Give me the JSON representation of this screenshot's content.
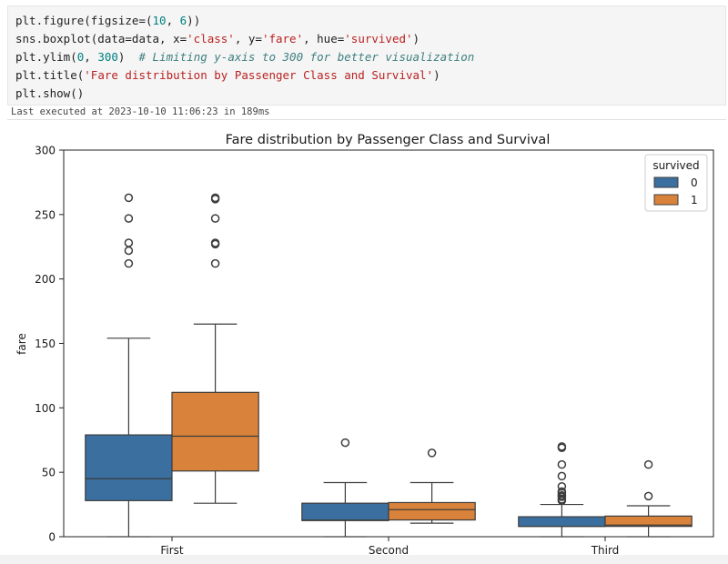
{
  "code": {
    "lines": [
      [
        {
          "t": "plt.figure(figsize=(",
          "c": "kw"
        },
        {
          "t": "10",
          "c": "num"
        },
        {
          "t": ", ",
          "c": "kw"
        },
        {
          "t": "6",
          "c": "num"
        },
        {
          "t": "))",
          "c": "kw"
        }
      ],
      [
        {
          "t": "sns.boxplot(data=data, x=",
          "c": "kw"
        },
        {
          "t": "'class'",
          "c": "str"
        },
        {
          "t": ", y=",
          "c": "kw"
        },
        {
          "t": "'fare'",
          "c": "str"
        },
        {
          "t": ", hue=",
          "c": "kw"
        },
        {
          "t": "'survived'",
          "c": "str"
        },
        {
          "t": ")",
          "c": "kw"
        }
      ],
      [
        {
          "t": "plt.ylim(",
          "c": "kw"
        },
        {
          "t": "0",
          "c": "num"
        },
        {
          "t": ", ",
          "c": "kw"
        },
        {
          "t": "300",
          "c": "num"
        },
        {
          "t": ")  ",
          "c": "kw"
        },
        {
          "t": "# Limiting y-axis to 300 for better visualization",
          "c": "cmt"
        }
      ],
      [
        {
          "t": "plt.title(",
          "c": "kw"
        },
        {
          "t": "'Fare distribution by Passenger Class and Survival'",
          "c": "str"
        },
        {
          "t": ")",
          "c": "kw"
        }
      ],
      [
        {
          "t": "plt.show()",
          "c": "kw"
        }
      ]
    ]
  },
  "exec_status": "Last executed at 2023-10-10 11:06:23 in 189ms",
  "colors": {
    "survived_0": "#3a6f9f",
    "survived_1": "#d9823b",
    "edge": "#3d3d3d"
  },
  "chart_data": {
    "type": "box",
    "title": "Fare distribution by Passenger Class and Survival",
    "xlabel": "",
    "ylabel": "fare",
    "ylim": [
      0,
      300
    ],
    "yticks": [
      0,
      50,
      100,
      150,
      200,
      250,
      300
    ],
    "categories": [
      "First",
      "Second",
      "Third"
    ],
    "legend": {
      "title": "survived",
      "placement": "top-right",
      "entries": [
        "0",
        "1"
      ]
    },
    "series": [
      {
        "name": "0",
        "boxes": [
          {
            "category": "First",
            "whisker_low": 0,
            "q1": 28,
            "median": 45,
            "q3": 79,
            "whisker_high": 154,
            "outliers": [
              212,
              222,
              228,
              247,
              263
            ]
          },
          {
            "category": "Second",
            "whisker_low": 0,
            "q1": 12.5,
            "median": 13,
            "q3": 26,
            "whisker_high": 42,
            "outliers": [
              73
            ]
          },
          {
            "category": "Third",
            "whisker_low": 0,
            "q1": 8,
            "median": 8,
            "q3": 15.5,
            "whisker_high": 25,
            "outliers": [
              28,
              29,
              31,
              32,
              34,
              35,
              39,
              47,
              56,
              69,
              70
            ]
          }
        ]
      },
      {
        "name": "1",
        "boxes": [
          {
            "category": "First",
            "whisker_low": 26,
            "q1": 51,
            "median": 78,
            "q3": 112,
            "whisker_high": 165,
            "outliers": [
              212,
              227,
              228,
              247,
              262,
              263
            ]
          },
          {
            "category": "Second",
            "whisker_low": 10.5,
            "q1": 13,
            "median": 21,
            "q3": 26.5,
            "whisker_high": 42,
            "outliers": [
              65
            ]
          },
          {
            "category": "Third",
            "whisker_low": 0,
            "q1": 8,
            "median": 9,
            "q3": 16,
            "whisker_high": 24,
            "outliers": [
              31.5,
              56
            ]
          }
        ]
      }
    ]
  }
}
